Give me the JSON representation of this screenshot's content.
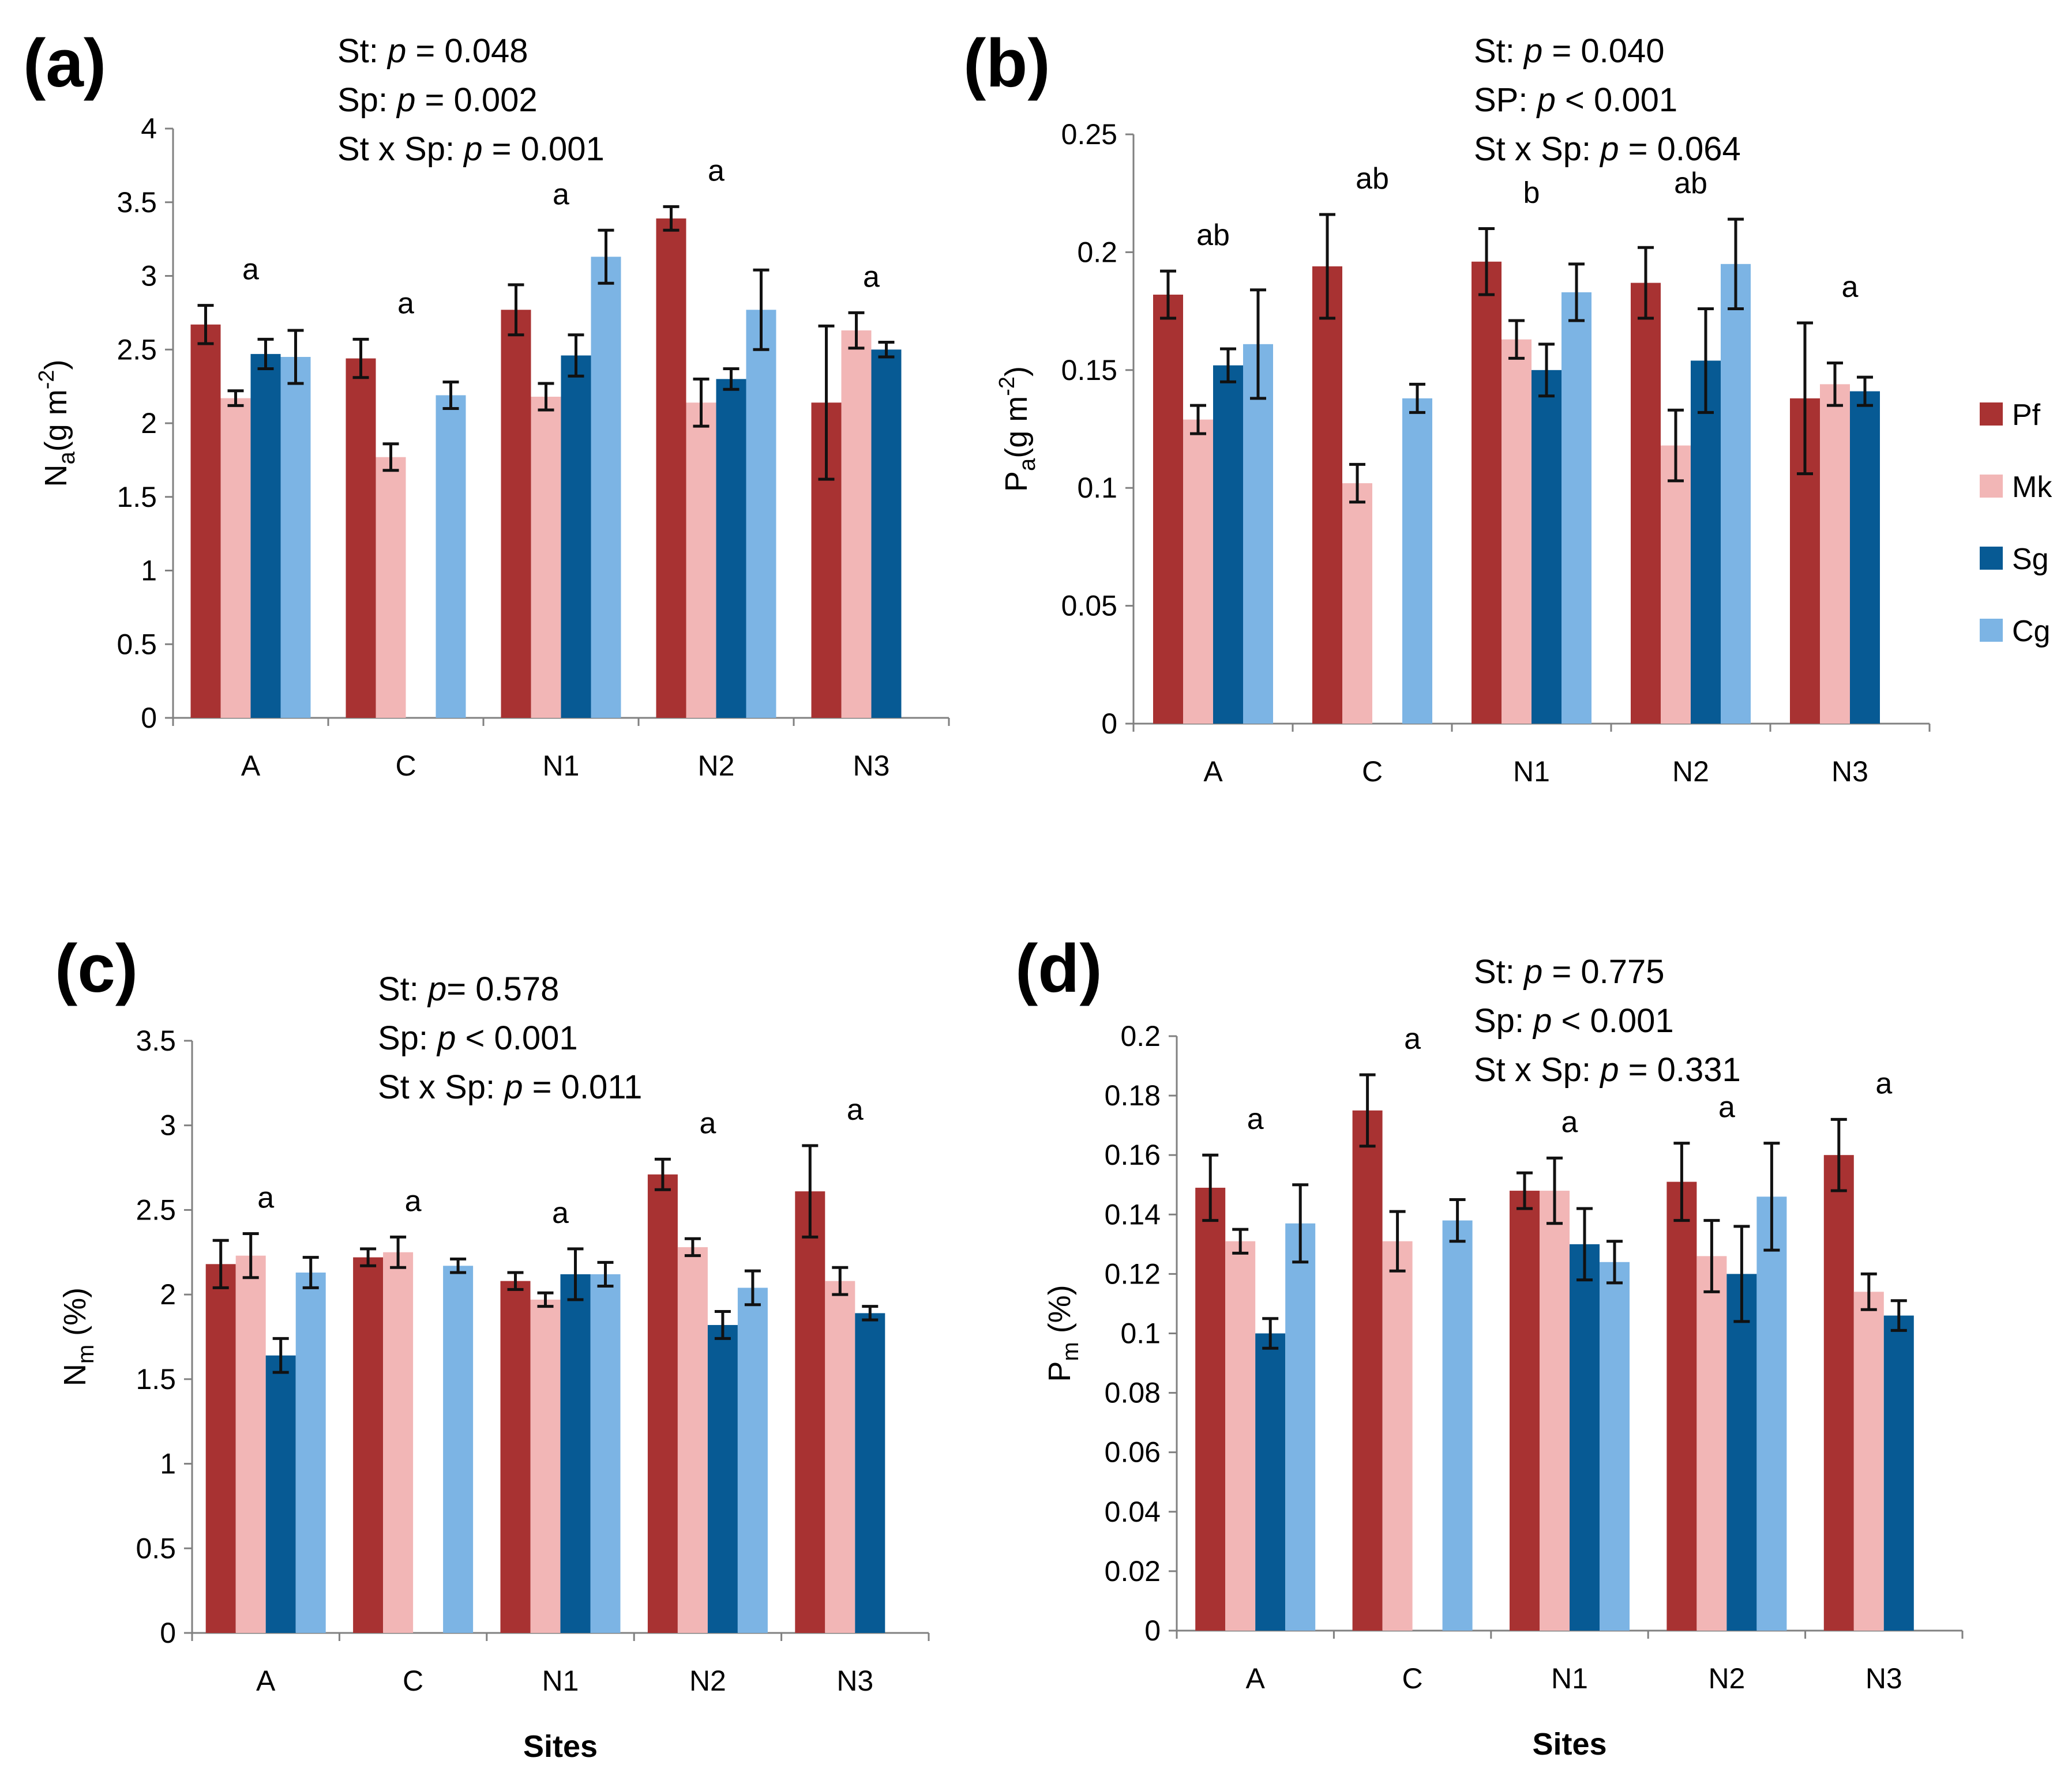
{
  "colors": {
    "Pf": "#A83232",
    "Mk": "#F2B6B6",
    "Sg": "#075A94",
    "Cg": "#7CB4E4"
  },
  "legend": [
    "Pf",
    "Mk",
    "Sg",
    "Cg"
  ],
  "chart_data": [
    {
      "type": "bar",
      "panel_label": "(a)",
      "stats": [
        "St: p = 0.048",
        "Sp: p = 0.002",
        "St x Sp: p = 0.001"
      ],
      "ylabel": "Na (g m-2)",
      "ylabel_main": "N",
      "ylabel_sub": "a",
      "ylabel_unit": "(g m",
      "ylabel_sup": "-2",
      "ylabel_close": ")",
      "xlabel": "",
      "categories": [
        "A",
        "C",
        "N1",
        "N2",
        "N3"
      ],
      "ylim": [
        0,
        4
      ],
      "yticks": [
        0,
        0.5,
        1,
        1.5,
        2,
        2.5,
        3,
        3.5,
        4
      ],
      "ytick_labels": [
        "0",
        "0.5",
        "1",
        "1.5",
        "2",
        "2.5",
        "3",
        "3.5",
        "4"
      ],
      "series": [
        {
          "name": "Pf",
          "values": [
            2.67,
            2.44,
            2.77,
            3.39,
            2.14
          ],
          "errors": [
            0.13,
            0.13,
            0.17,
            0.08,
            0.52
          ]
        },
        {
          "name": "Mk",
          "values": [
            2.17,
            1.77,
            2.18,
            2.14,
            2.63
          ],
          "errors": [
            0.05,
            0.09,
            0.09,
            0.16,
            0.12
          ]
        },
        {
          "name": "Sg",
          "values": [
            2.47,
            null,
            2.46,
            2.3,
            2.5
          ],
          "errors": [
            0.1,
            null,
            0.14,
            0.07,
            0.05
          ]
        },
        {
          "name": "Cg",
          "values": [
            2.45,
            2.19,
            3.13,
            2.77,
            null
          ],
          "errors": [
            0.18,
            0.09,
            0.18,
            0.27,
            null
          ]
        }
      ],
      "letters": [
        "a",
        "a",
        "a",
        "a",
        "a"
      ]
    },
    {
      "type": "bar",
      "panel_label": "(b)",
      "stats": [
        "St: p = 0.040",
        "SP: p < 0.001",
        "St x Sp: p = 0.064"
      ],
      "ylabel": "Pa (g m-2)",
      "ylabel_main": "P",
      "ylabel_sub": "a",
      "ylabel_unit": "(g m",
      "ylabel_sup": "-2",
      "ylabel_close": ")",
      "xlabel": "",
      "categories": [
        "A",
        "C",
        "N1",
        "N2",
        "N3"
      ],
      "ylim": [
        0,
        0.25
      ],
      "yticks": [
        0,
        0.05,
        0.1,
        0.15,
        0.2,
        0.25
      ],
      "ytick_labels": [
        "0",
        "0.05",
        "0.1",
        "0.15",
        "0.2",
        "0.25"
      ],
      "series": [
        {
          "name": "Pf",
          "values": [
            0.182,
            0.194,
            0.196,
            0.187,
            0.138
          ],
          "errors": [
            0.01,
            0.022,
            0.014,
            0.015,
            0.032
          ]
        },
        {
          "name": "Mk",
          "values": [
            0.129,
            0.102,
            0.163,
            0.118,
            0.144
          ],
          "errors": [
            0.006,
            0.008,
            0.008,
            0.015,
            0.009
          ]
        },
        {
          "name": "Sg",
          "values": [
            0.152,
            null,
            0.15,
            0.154,
            0.141
          ],
          "errors": [
            0.007,
            null,
            0.011,
            0.022,
            0.006
          ]
        },
        {
          "name": "Cg",
          "values": [
            0.161,
            0.138,
            0.183,
            0.195,
            null
          ],
          "errors": [
            0.023,
            0.006,
            0.012,
            0.019,
            null
          ]
        }
      ],
      "letters": [
        "ab",
        "ab",
        "b",
        "ab",
        "a"
      ]
    },
    {
      "type": "bar",
      "panel_label": "(c)",
      "stats": [
        "St: p= 0.578",
        "Sp: p < 0.001",
        "St x Sp: p = 0.011"
      ],
      "ylabel": "Nm (%)",
      "ylabel_main": "N",
      "ylabel_sub": "m",
      "ylabel_unit": " (%)",
      "ylabel_sup": "",
      "ylabel_close": "",
      "xlabel": "Sites",
      "categories": [
        "A",
        "C",
        "N1",
        "N2",
        "N3"
      ],
      "ylim": [
        0,
        3.5
      ],
      "yticks": [
        0,
        0.5,
        1,
        1.5,
        2,
        2.5,
        3,
        3.5
      ],
      "ytick_labels": [
        "0",
        "0.5",
        "1",
        "1.5",
        "2",
        "2.5",
        "3",
        "3.5"
      ],
      "series": [
        {
          "name": "Pf",
          "values": [
            2.18,
            2.22,
            2.08,
            2.71,
            2.61
          ],
          "errors": [
            0.14,
            0.05,
            0.05,
            0.09,
            0.27
          ]
        },
        {
          "name": "Mk",
          "values": [
            2.23,
            2.25,
            1.97,
            2.28,
            2.08
          ],
          "errors": [
            0.13,
            0.09,
            0.04,
            0.05,
            0.08
          ]
        },
        {
          "name": "Sg",
          "values": [
            1.64,
            null,
            2.12,
            1.82,
            1.89
          ],
          "errors": [
            0.1,
            null,
            0.15,
            0.08,
            0.04
          ]
        },
        {
          "name": "Cg",
          "values": [
            2.13,
            2.17,
            2.12,
            2.04,
            null
          ],
          "errors": [
            0.09,
            0.04,
            0.07,
            0.1,
            null
          ]
        }
      ],
      "letters": [
        "a",
        "a",
        "a",
        "a",
        "a"
      ]
    },
    {
      "type": "bar",
      "panel_label": "(d)",
      "stats": [
        "St: p = 0.775",
        "Sp: p < 0.001",
        "St x Sp: p = 0.331"
      ],
      "ylabel": "Pm (%)",
      "ylabel_main": "P",
      "ylabel_sub": "m",
      "ylabel_unit": " (%)",
      "ylabel_sup": "",
      "ylabel_close": "",
      "xlabel": "Sites",
      "categories": [
        "A",
        "C",
        "N1",
        "N2",
        "N3"
      ],
      "ylim": [
        0,
        0.2
      ],
      "yticks": [
        0,
        0.02,
        0.04,
        0.06,
        0.08,
        0.1,
        0.12,
        0.14,
        0.16,
        0.18,
        0.2
      ],
      "ytick_labels": [
        "0",
        "0.02",
        "0.04",
        "0.06",
        "0.08",
        "0.1",
        "0.12",
        "0.14",
        "0.16",
        "0.18",
        "0.2"
      ],
      "series": [
        {
          "name": "Pf",
          "values": [
            0.149,
            0.175,
            0.148,
            0.151,
            0.16
          ],
          "errors": [
            0.011,
            0.012,
            0.006,
            0.013,
            0.012
          ]
        },
        {
          "name": "Mk",
          "values": [
            0.131,
            0.131,
            0.148,
            0.126,
            0.114
          ],
          "errors": [
            0.004,
            0.01,
            0.011,
            0.012,
            0.006
          ]
        },
        {
          "name": "Sg",
          "values": [
            0.1,
            null,
            0.13,
            0.12,
            0.106
          ],
          "errors": [
            0.005,
            null,
            0.012,
            0.016,
            0.005
          ]
        },
        {
          "name": "Cg",
          "values": [
            0.137,
            0.138,
            0.124,
            0.146,
            null
          ],
          "errors": [
            0.013,
            0.007,
            0.007,
            0.018,
            null
          ]
        }
      ],
      "letters": [
        "a",
        "a",
        "a",
        "a",
        "a"
      ]
    }
  ]
}
